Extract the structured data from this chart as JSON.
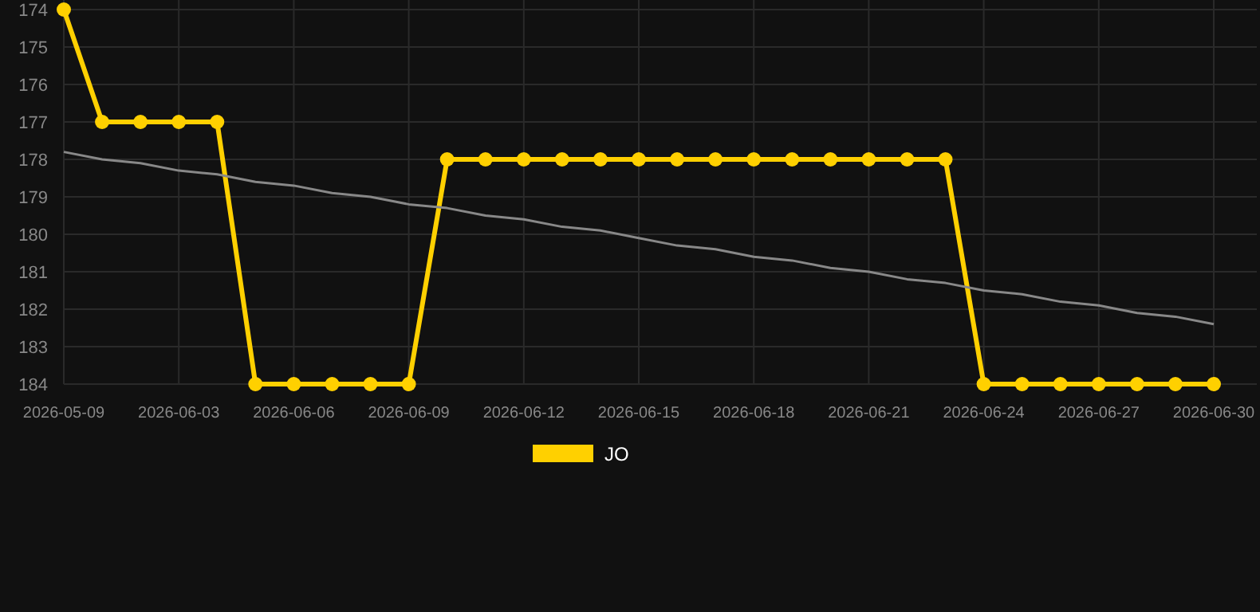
{
  "chart_data": {
    "type": "line",
    "categories": [
      "2026-05-09",
      null,
      null,
      "2026-06-03",
      null,
      null,
      "2026-06-06",
      null,
      null,
      "2026-06-09",
      null,
      null,
      "2026-06-12",
      null,
      null,
      "2026-06-15",
      null,
      null,
      "2026-06-18",
      null,
      null,
      "2026-06-21",
      null,
      null,
      "2026-06-24",
      null,
      null,
      "2026-06-27",
      null,
      null,
      "2026-06-30"
    ],
    "series": [
      {
        "name": "JO",
        "color": "#ffd000",
        "marker": "circle",
        "values": [
          174,
          177,
          177,
          177,
          177,
          184,
          184,
          184,
          184,
          184,
          178,
          178,
          178,
          178,
          178,
          178,
          178,
          178,
          178,
          178,
          178,
          178,
          178,
          178,
          184,
          184,
          184,
          184,
          184,
          184,
          184
        ]
      },
      {
        "type": "line",
        "color": "#888888",
        "marker": "none",
        "values": [
          177.8,
          178.0,
          178.1,
          178.3,
          178.4,
          178.6,
          178.7,
          178.9,
          179.0,
          179.2,
          179.3,
          179.5,
          179.6,
          179.8,
          179.9,
          180.1,
          180.3,
          180.4,
          180.6,
          180.7,
          180.9,
          181.0,
          181.2,
          181.3,
          181.5,
          181.6,
          181.8,
          181.9,
          182.1,
          182.2,
          182.4
        ]
      }
    ],
    "ylim": [
      184,
      174
    ],
    "yticks": [
      174,
      175,
      176,
      177,
      178,
      179,
      180,
      181,
      182,
      183,
      184
    ],
    "grid": true,
    "legend": "bottom"
  }
}
